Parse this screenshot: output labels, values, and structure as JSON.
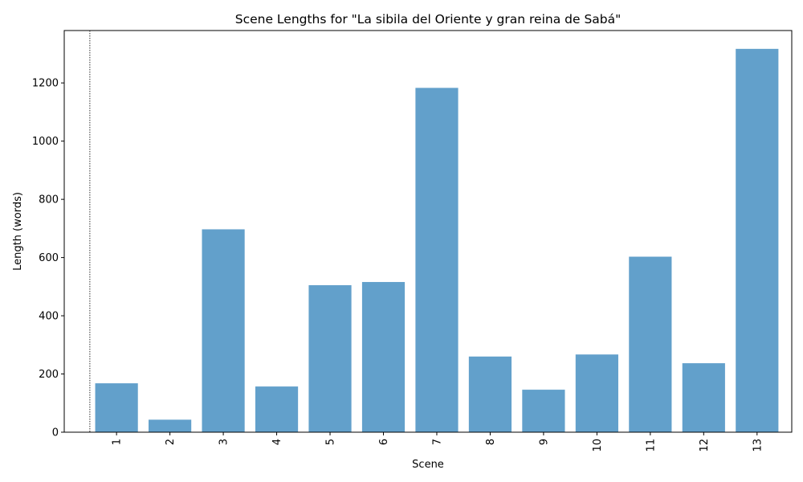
{
  "chart_data": {
    "type": "bar",
    "title": "Scene Lengths for \"La sibila del Oriente y gran reina de Sabá\"",
    "xlabel": "Scene",
    "ylabel": "Length (words)",
    "categories": [
      "1",
      "2",
      "3",
      "4",
      "5",
      "6",
      "7",
      "8",
      "9",
      "10",
      "11",
      "12",
      "13"
    ],
    "values": [
      168,
      43,
      697,
      157,
      505,
      516,
      1183,
      260,
      146,
      267,
      603,
      237,
      1317
    ],
    "ylim": [
      0,
      1380
    ],
    "yticks": [
      0,
      200,
      400,
      600,
      800,
      1000,
      1200
    ],
    "bar_color": "#62a0cb",
    "grid": false,
    "reference_line": {
      "style": "dotted",
      "color": "#000000"
    }
  }
}
